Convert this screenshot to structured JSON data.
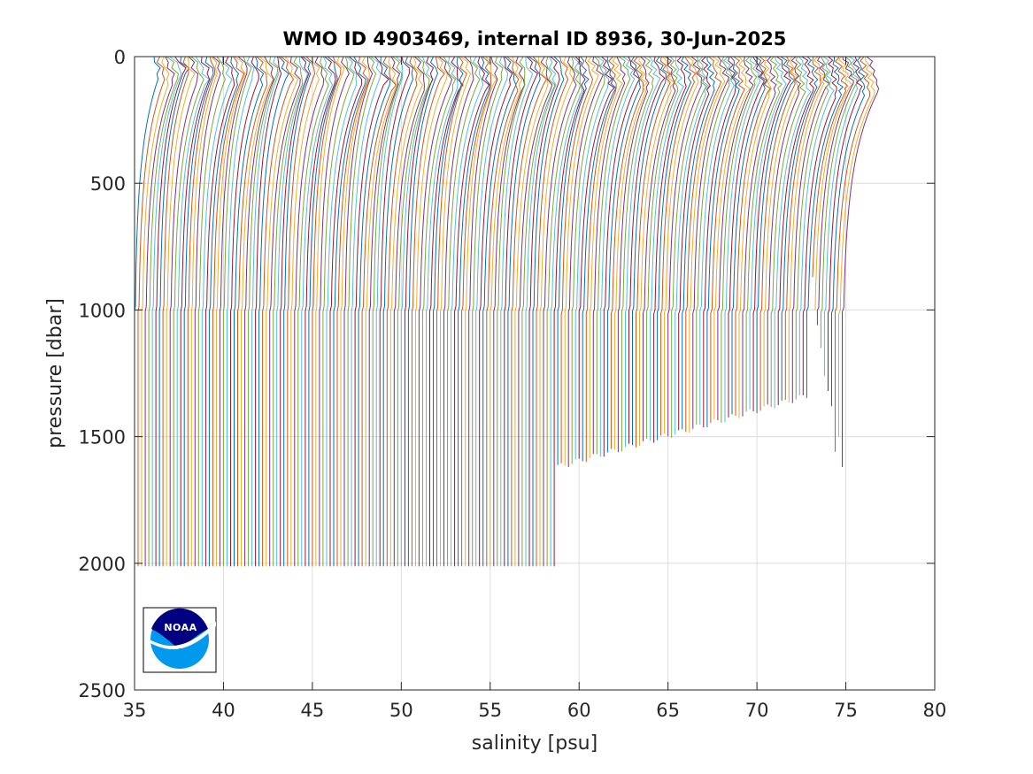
{
  "chart_data": {
    "type": "line",
    "title": "WMO ID 4903469, internal ID 8936, 30-Jun-2025",
    "xlabel": "salinity [psu]",
    "ylabel": "pressure [dbar]",
    "xlim": [
      35,
      80
    ],
    "ylim": [
      0,
      2500
    ],
    "y_reversed": true,
    "grid": true,
    "x_ticks": [
      35,
      40,
      45,
      50,
      55,
      60,
      65,
      70,
      75,
      80
    ],
    "y_ticks": [
      0,
      500,
      1000,
      1500,
      2000,
      2500
    ],
    "profile_offset_psu": 0.2,
    "colors": [
      "#0072BD",
      "#D95319",
      "#EDB120",
      "#7E2F8E",
      "#77AC30",
      "#4DBEEE",
      "#A2142F"
    ],
    "profiles": {
      "count": 200,
      "first_deep_salinity": 35.0,
      "deep_salinity_spacing": 0.2,
      "surface_salinity_range": [
        36.1,
        76.3
      ],
      "max_pressure_range": [
        870,
        2015
      ],
      "late_profile_max_pressures": [
        1620,
        1500,
        1560,
        1380,
        1320,
        1260,
        1150,
        1060,
        1000,
        870
      ]
    }
  },
  "logo": {
    "label": "NOAA",
    "name": "noaa-logo"
  }
}
